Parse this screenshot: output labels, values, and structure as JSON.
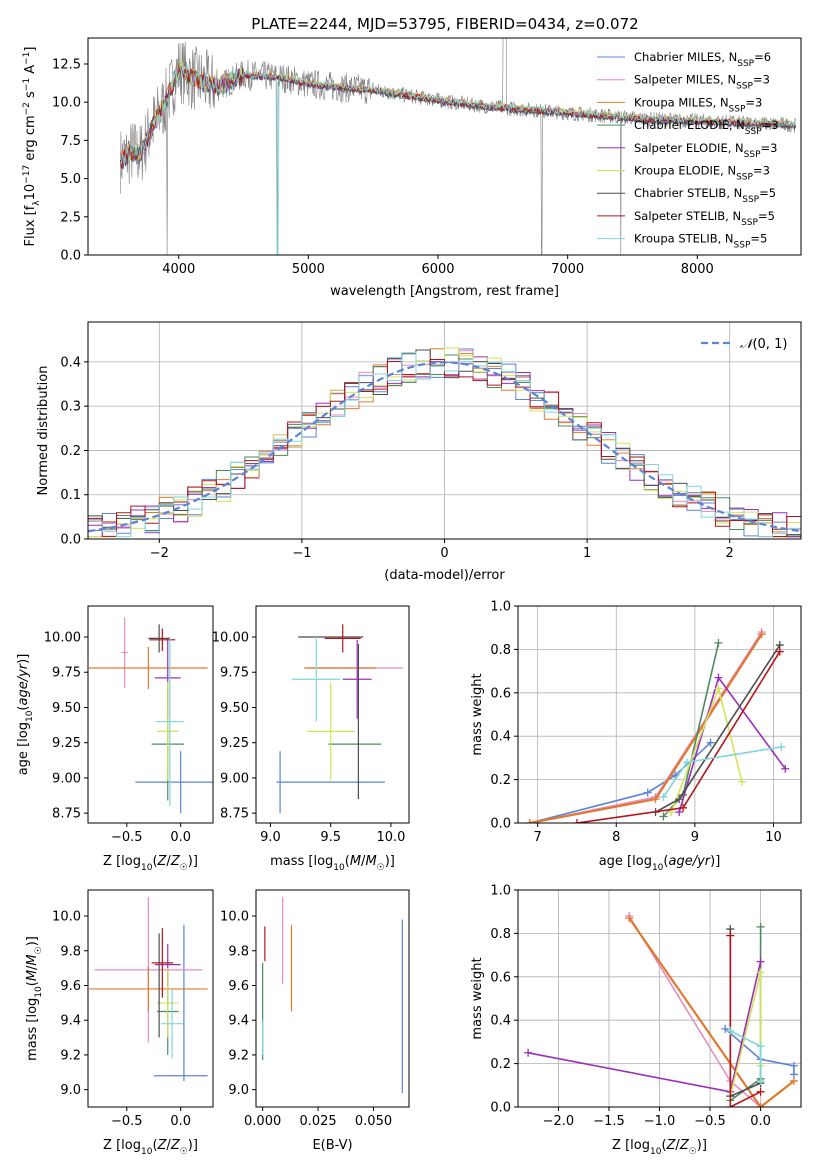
{
  "title": "PLATE=2244, MJD=53795, FIBERID=0434, z=0.072",
  "colors": {
    "c0": "#5b84d6",
    "c1": "#e58cc1",
    "c2": "#e07a30",
    "c3": "#4e8a5f",
    "c4": "#9b30b8",
    "c5": "#d4e25a",
    "c6": "#4d4d4d",
    "c7": "#b5141a",
    "c8": "#7fd6da",
    "obs": "#7f7f7f"
  },
  "chart_data": [
    {
      "id": "spectrum",
      "type": "line",
      "xlabel": "wavelength [Angstrom, rest frame]",
      "ylabel": "Flux [f_λ10^{-17} erg cm^{-2} s^{-1} A^{-1}]",
      "xlim": [
        3300,
        8800
      ],
      "ylim": [
        0,
        14.2
      ],
      "xticks": [
        4000,
        5000,
        6000,
        7000,
        8000
      ],
      "yticks": [
        0.0,
        2.5,
        5.0,
        7.5,
        10.0,
        12.5
      ],
      "legend_position": "upper-right",
      "series": [
        {
          "name": "Chabrier MILES, N_SSP=6",
          "color": "c0"
        },
        {
          "name": "Salpeter MILES, N_SSP=3",
          "color": "c1"
        },
        {
          "name": "Kroupa MILES, N_SSP=3",
          "color": "c2"
        },
        {
          "name": "Chabrier ELODIE, N_SSP=3",
          "color": "c3"
        },
        {
          "name": "Salpeter ELODIE, N_SSP=3",
          "color": "c4"
        },
        {
          "name": "Kroupa ELODIE, N_SSP=3",
          "color": "c5"
        },
        {
          "name": "Chabrier STELIB, N_SSP=5",
          "color": "c6"
        },
        {
          "name": "Salpeter STELIB, N_SSP=5",
          "color": "c7"
        },
        {
          "name": "Kroupa STELIB, N_SSP=5",
          "color": "c8"
        }
      ],
      "continuum": {
        "x": [
          3550,
          3650,
          3700,
          3800,
          3900,
          4000,
          4100,
          4300,
          4500,
          4800,
          5000,
          5200,
          5500,
          5800,
          6100,
          6400,
          6700,
          7000,
          7300,
          7600,
          7900,
          8200,
          8500,
          8750
        ],
        "y": [
          6.2,
          6.8,
          6.5,
          8.5,
          10.0,
          12.2,
          11.6,
          11.0,
          11.8,
          11.6,
          11.2,
          11.0,
          10.8,
          10.4,
          10.0,
          9.7,
          9.5,
          9.3,
          9.1,
          8.9,
          8.8,
          8.7,
          8.6,
          8.5
        ]
      },
      "spikes": [
        {
          "x": 3910,
          "y": 0
        },
        {
          "x": 4760,
          "y": 0
        },
        {
          "x": 6800,
          "y": 0
        },
        {
          "x": 7410,
          "y": 0
        }
      ]
    },
    {
      "id": "residuals",
      "type": "histogram",
      "xlabel": "(data-model)/error",
      "ylabel": "Normed distribution",
      "xlim": [
        -2.5,
        2.5
      ],
      "ylim": [
        0,
        0.49
      ],
      "xticks": [
        -2,
        -1,
        0,
        1,
        2
      ],
      "yticks": [
        0.0,
        0.1,
        0.2,
        0.3,
        0.4
      ],
      "grid": true,
      "legend": "N(0,1)",
      "legend_position": "upper-right",
      "gaussian": {
        "mean": 0,
        "sigma": 1,
        "color": "c0",
        "style": "dashed"
      },
      "bin_width": 0.1
    },
    {
      "id": "age-vs-Z",
      "type": "errorbar",
      "xlabel": "Z [log10(Z/Z☉)]",
      "ylabel": "age  [log10(age/yr)]",
      "xlim": [
        -0.86,
        0.3
      ],
      "ylim": [
        8.68,
        10.22
      ],
      "xticks": [
        -0.5,
        0.0
      ],
      "yticks": [
        8.75,
        9.0,
        9.25,
        9.5,
        9.75,
        10.0
      ],
      "points": [
        {
          "c": "c0",
          "x": 0.0,
          "xerr": 0.42,
          "y": 8.97,
          "yerr": 0.22
        },
        {
          "c": "c1",
          "x": -0.52,
          "xerr": 0.03,
          "y": 9.89,
          "yerr": 0.25
        },
        {
          "c": "c2",
          "x": -0.3,
          "xerr": 0.55,
          "y": 9.78,
          "yerr": 0.15
        },
        {
          "c": "c3",
          "x": -0.12,
          "xerr": 0.15,
          "y": 9.24,
          "yerr": 0.4
        },
        {
          "c": "c4",
          "x": -0.12,
          "xerr": 0.12,
          "y": 9.71,
          "yerr": 0.28
        },
        {
          "c": "c5",
          "x": -0.12,
          "xerr": 0.1,
          "y": 9.33,
          "yerr": 0.35
        },
        {
          "c": "c6",
          "x": -0.2,
          "xerr": 0.1,
          "y": 9.99,
          "yerr": 0.1
        },
        {
          "c": "c7",
          "x": -0.17,
          "xerr": 0.12,
          "y": 9.98,
          "yerr": 0.08
        },
        {
          "c": "c8",
          "x": -0.1,
          "xerr": 0.13,
          "y": 9.4,
          "yerr": 0.6
        }
      ]
    },
    {
      "id": "age-vs-mass",
      "type": "errorbar",
      "xlabel": "mass [log10(M/M☉)]",
      "ylabel": "",
      "xlim": [
        8.88,
        10.15
      ],
      "ylim": [
        8.68,
        10.22
      ],
      "xticks": [
        9.0,
        9.5,
        10.0
      ],
      "yticks": [
        8.75,
        9.0,
        9.25,
        9.5,
        9.75,
        10.0
      ],
      "points": [
        {
          "c": "c0",
          "x": 9.08,
          "xerr": 0.0,
          "y": 8.97,
          "yerr": 0.22
        },
        {
          "c": "c0",
          "x": 9.5,
          "xerr": 0.45,
          "y": 8.97,
          "yerr": 0.0
        },
        {
          "c": "c1",
          "x": 9.7,
          "xerr": 0.4,
          "y": 9.78,
          "yerr": 0.0
        },
        {
          "c": "c2",
          "x": 9.58,
          "xerr": 0.3,
          "y": 9.78,
          "yerr": 0.0
        },
        {
          "c": "c3",
          "x": 9.7,
          "xerr": 0.22,
          "y": 9.24,
          "yerr": 0.0
        },
        {
          "c": "c4",
          "x": 9.72,
          "xerr": 0.12,
          "y": 9.7,
          "yerr": 0.28
        },
        {
          "c": "c5",
          "x": 9.5,
          "xerr": 0.2,
          "y": 9.33,
          "yerr": 0.35
        },
        {
          "c": "c6",
          "x": 9.5,
          "xerr": 0.27,
          "y": 10.0,
          "yerr": 0.0
        },
        {
          "c": "c6",
          "x": 9.73,
          "xerr": 0.0,
          "y": 9.4,
          "yerr": 0.55
        },
        {
          "c": "c7",
          "x": 9.6,
          "xerr": 0.15,
          "y": 9.99,
          "yerr": 0.1
        },
        {
          "c": "c8",
          "x": 9.38,
          "xerr": 0.2,
          "y": 9.7,
          "yerr": 0.3
        }
      ]
    },
    {
      "id": "weight-vs-age",
      "type": "line",
      "xlabel": "age  [log10(age/yr)]",
      "ylabel": "mass weight",
      "xlim": [
        6.75,
        10.35
      ],
      "ylim": [
        0.0,
        1.0
      ],
      "xticks": [
        7,
        8,
        9,
        10
      ],
      "yticks": [
        0.0,
        0.2,
        0.4,
        0.6,
        0.8,
        1.0
      ],
      "grid": true,
      "series": [
        {
          "c": "c0",
          "x": [
            6.9,
            8.4,
            8.75,
            9.2
          ],
          "y": [
            0.0,
            0.14,
            0.22,
            0.37
          ]
        },
        {
          "c": "c1",
          "x": [
            6.9,
            8.5,
            9.85
          ],
          "y": [
            0.0,
            0.12,
            0.88
          ]
        },
        {
          "c": "c2",
          "x": [
            6.9,
            8.5,
            9.85
          ],
          "y": [
            0.0,
            0.11,
            0.87
          ]
        },
        {
          "c": "c3",
          "x": [
            8.6,
            8.85,
            9.3
          ],
          "y": [
            0.03,
            0.13,
            0.83
          ]
        },
        {
          "c": "c4",
          "x": [
            8.8,
            9.3,
            10.15
          ],
          "y": [
            0.05,
            0.67,
            0.25
          ]
        },
        {
          "c": "c5",
          "x": [
            8.7,
            9.3,
            9.6
          ],
          "y": [
            0.05,
            0.62,
            0.19
          ]
        },
        {
          "c": "c6",
          "x": [
            8.5,
            8.8,
            10.08
          ],
          "y": [
            0.05,
            0.11,
            0.82
          ]
        },
        {
          "c": "c7",
          "x": [
            7.5,
            8.85,
            10.08
          ],
          "y": [
            0.0,
            0.07,
            0.79
          ]
        },
        {
          "c": "c8",
          "x": [
            8.6,
            8.9,
            10.1
          ],
          "y": [
            0.12,
            0.28,
            0.35
          ]
        }
      ]
    },
    {
      "id": "mass-vs-Z",
      "type": "errorbar",
      "xlabel": "Z [log10(Z/Z☉)]",
      "ylabel": "mass [log10(M/M☉)]",
      "xlim": [
        -0.86,
        0.3
      ],
      "ylim": [
        8.9,
        10.15
      ],
      "xticks": [
        -0.5,
        0.0
      ],
      "yticks": [
        9.0,
        9.2,
        9.4,
        9.6,
        9.8,
        10.0
      ],
      "points": [
        {
          "c": "c0",
          "x": 0.0,
          "xerr": 0.25,
          "y": 9.08,
          "yerr": 0.0
        },
        {
          "c": "c0",
          "x": 0.03,
          "xerr": 0.0,
          "y": 9.5,
          "yerr": 0.45
        },
        {
          "c": "c1",
          "x": -0.3,
          "xerr": 0.5,
          "y": 9.69,
          "yerr": 0.42
        },
        {
          "c": "c2",
          "x": -0.3,
          "xerr": 0.55,
          "y": 9.58,
          "yerr": 0.13
        },
        {
          "c": "c3",
          "x": -0.12,
          "xerr": 0.1,
          "y": 9.45,
          "yerr": 0.25
        },
        {
          "c": "c4",
          "x": -0.12,
          "xerr": 0.12,
          "y": 9.72,
          "yerr": 0.12
        },
        {
          "c": "c5",
          "x": -0.12,
          "xerr": 0.1,
          "y": 9.5,
          "yerr": 0.2
        },
        {
          "c": "c6",
          "x": -0.2,
          "xerr": 0.0,
          "y": 9.6,
          "yerr": 0.3
        },
        {
          "c": "c7",
          "x": -0.17,
          "xerr": 0.1,
          "y": 9.73,
          "yerr": 0.2
        },
        {
          "c": "c8",
          "x": -0.08,
          "xerr": 0.1,
          "y": 9.38,
          "yerr": 0.2
        }
      ]
    },
    {
      "id": "mass-vs-EBV",
      "type": "errorbar",
      "xlabel": "E(B-V)",
      "ylabel": "",
      "xlim": [
        -0.003,
        0.066
      ],
      "ylim": [
        8.9,
        10.15
      ],
      "xticks": [
        0.0,
        0.025,
        0.05
      ],
      "xticklabels": [
        "0.000",
        "0.025",
        "0.050"
      ],
      "yticks": [
        9.0,
        9.2,
        9.4,
        9.6,
        9.8,
        10.0
      ],
      "points": [
        {
          "c": "c0",
          "x": 0.063,
          "xerr": 0.0,
          "y": 9.48,
          "yerr": 0.5
        },
        {
          "c": "c1",
          "x": 0.009,
          "xerr": 0.0,
          "y": 9.86,
          "yerr": 0.25
        },
        {
          "c": "c2",
          "x": 0.013,
          "xerr": 0.0,
          "y": 9.7,
          "yerr": 0.25
        },
        {
          "c": "c3",
          "x": 0.0,
          "xerr": 0.0,
          "y": 9.45,
          "yerr": 0.28
        },
        {
          "c": "c7",
          "x": 0.001,
          "xerr": 0.0,
          "y": 9.84,
          "yerr": 0.1
        },
        {
          "c": "c8",
          "x": 0.0,
          "xerr": 0.0,
          "y": 9.3,
          "yerr": 0.1
        }
      ]
    },
    {
      "id": "weight-vs-Z",
      "type": "line",
      "xlabel": "Z [log10(Z/Z☉)]",
      "ylabel": "mass weight",
      "xlim": [
        -2.4,
        0.4
      ],
      "ylim": [
        0.0,
        1.0
      ],
      "xticks": [
        -2.0,
        -1.5,
        -1.0,
        -0.5,
        0.0
      ],
      "yticks": [
        0.0,
        0.2,
        0.4,
        0.6,
        0.8,
        1.0
      ],
      "grid": true,
      "series": [
        {
          "c": "c0",
          "x": [
            -0.35,
            0.0,
            0.33,
            0.33
          ],
          "y": [
            0.36,
            0.22,
            0.19,
            0.15
          ]
        },
        {
          "c": "c1",
          "x": [
            -1.3,
            -0.3,
            0.0
          ],
          "y": [
            0.88,
            0.12,
            0.0
          ]
        },
        {
          "c": "c2",
          "x": [
            -1.3,
            0.0,
            0.33
          ],
          "y": [
            0.87,
            0.0,
            0.12
          ]
        },
        {
          "c": "c3",
          "x": [
            0.0,
            0.0,
            -0.3
          ],
          "y": [
            0.83,
            0.13,
            0.03
          ]
        },
        {
          "c": "c4",
          "x": [
            -2.3,
            -0.3,
            0.0
          ],
          "y": [
            0.25,
            0.07,
            0.67
          ]
        },
        {
          "c": "c5",
          "x": [
            -0.3,
            0.0,
            0.0
          ],
          "y": [
            0.05,
            0.62,
            0.19
          ]
        },
        {
          "c": "c6",
          "x": [
            -0.3,
            -0.3,
            0.0
          ],
          "y": [
            0.82,
            0.05,
            0.11
          ]
        },
        {
          "c": "c7",
          "x": [
            -0.3,
            -0.3,
            0.0
          ],
          "y": [
            0.79,
            0.0,
            0.07
          ]
        },
        {
          "c": "c8",
          "x": [
            -0.3,
            0.0,
            0.0
          ],
          "y": [
            0.35,
            0.28,
            0.12
          ]
        }
      ]
    }
  ]
}
